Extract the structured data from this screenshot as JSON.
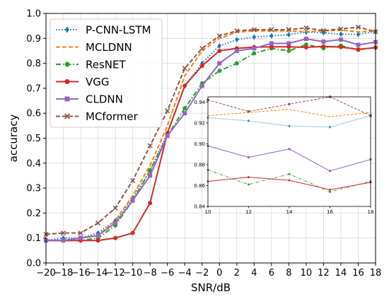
{
  "chart_data": {
    "type": "line",
    "xlabel": "SNR/dB",
    "ylabel": "accuracy",
    "xlim": [
      -20,
      18
    ],
    "ylim": [
      0.0,
      1.0
    ],
    "x": [
      -20,
      -18,
      -16,
      -14,
      -12,
      -10,
      -8,
      -6,
      -4,
      -2,
      0,
      2,
      4,
      6,
      8,
      10,
      12,
      14,
      16,
      18
    ],
    "xticks": [
      "−20",
      "−18",
      "−16",
      "−14",
      "−12",
      "−10",
      "−8",
      "−6",
      "−4",
      "−2",
      "0",
      "2",
      "4",
      "6",
      "8",
      "10",
      "12",
      "14",
      "16",
      "18"
    ],
    "yticks": [
      "0.0",
      "0.1",
      "0.2",
      "0.3",
      "0.4",
      "0.5",
      "0.6",
      "0.7",
      "0.8",
      "0.9",
      "1.0"
    ],
    "grid": true,
    "legend_position": "top-left",
    "series": [
      {
        "name": "P-CNN-LSTM",
        "color": "#1f77b4",
        "dash": "dotted",
        "marker": "diamond",
        "values": [
          0.09,
          0.1,
          0.1,
          0.12,
          0.17,
          0.26,
          0.37,
          0.52,
          0.71,
          0.8,
          0.87,
          0.895,
          0.905,
          0.91,
          0.915,
          0.925,
          0.922,
          0.917,
          0.916,
          0.927
        ]
      },
      {
        "name": "MCLDNN",
        "color": "#ff7f0e",
        "dash": "dashed",
        "marker": "none",
        "values": [
          0.09,
          0.09,
          0.1,
          0.11,
          0.17,
          0.27,
          0.39,
          0.55,
          0.75,
          0.85,
          0.9,
          0.925,
          0.93,
          0.93,
          0.93,
          0.927,
          0.93,
          0.933,
          0.926,
          0.93
        ]
      },
      {
        "name": "ResNET",
        "color": "#2ca02c",
        "dash": "dashdot",
        "marker": "circle",
        "values": [
          0.09,
          0.09,
          0.09,
          0.1,
          0.15,
          0.25,
          0.37,
          0.51,
          0.62,
          0.72,
          0.77,
          0.8,
          0.84,
          0.86,
          0.85,
          0.875,
          0.861,
          0.871,
          0.854,
          0.864
        ]
      },
      {
        "name": "VGG",
        "color": "#d62728",
        "dash": "solid",
        "marker": "circle",
        "values": [
          0.09,
          0.09,
          0.09,
          0.09,
          0.1,
          0.12,
          0.24,
          0.52,
          0.71,
          0.79,
          0.85,
          0.86,
          0.865,
          0.866,
          0.866,
          0.864,
          0.868,
          0.865,
          0.856,
          0.863
        ]
      },
      {
        "name": "CLDNN",
        "color": "#9467bd",
        "dash": "solid",
        "marker": "square",
        "values": [
          0.09,
          0.09,
          0.1,
          0.11,
          0.16,
          0.25,
          0.35,
          0.51,
          0.6,
          0.71,
          0.8,
          0.85,
          0.86,
          0.88,
          0.88,
          0.898,
          0.887,
          0.895,
          0.874,
          0.885
        ]
      },
      {
        "name": "MCformer",
        "color": "#8c564b",
        "dash": "dashed",
        "marker": "x",
        "values": [
          0.115,
          0.12,
          0.12,
          0.16,
          0.22,
          0.33,
          0.47,
          0.61,
          0.78,
          0.86,
          0.91,
          0.93,
          0.935,
          0.935,
          0.935,
          0.942,
          0.931,
          0.938,
          0.945,
          0.927
        ]
      }
    ],
    "inset": {
      "xlim": [
        10,
        18
      ],
      "ylim": [
        0.84,
        0.945
      ],
      "xticks": [
        "10",
        "12",
        "14",
        "16",
        "18"
      ],
      "yticks": [
        "0.84",
        "0.86",
        "0.88",
        "0.90",
        "0.92",
        "0.94"
      ]
    }
  }
}
